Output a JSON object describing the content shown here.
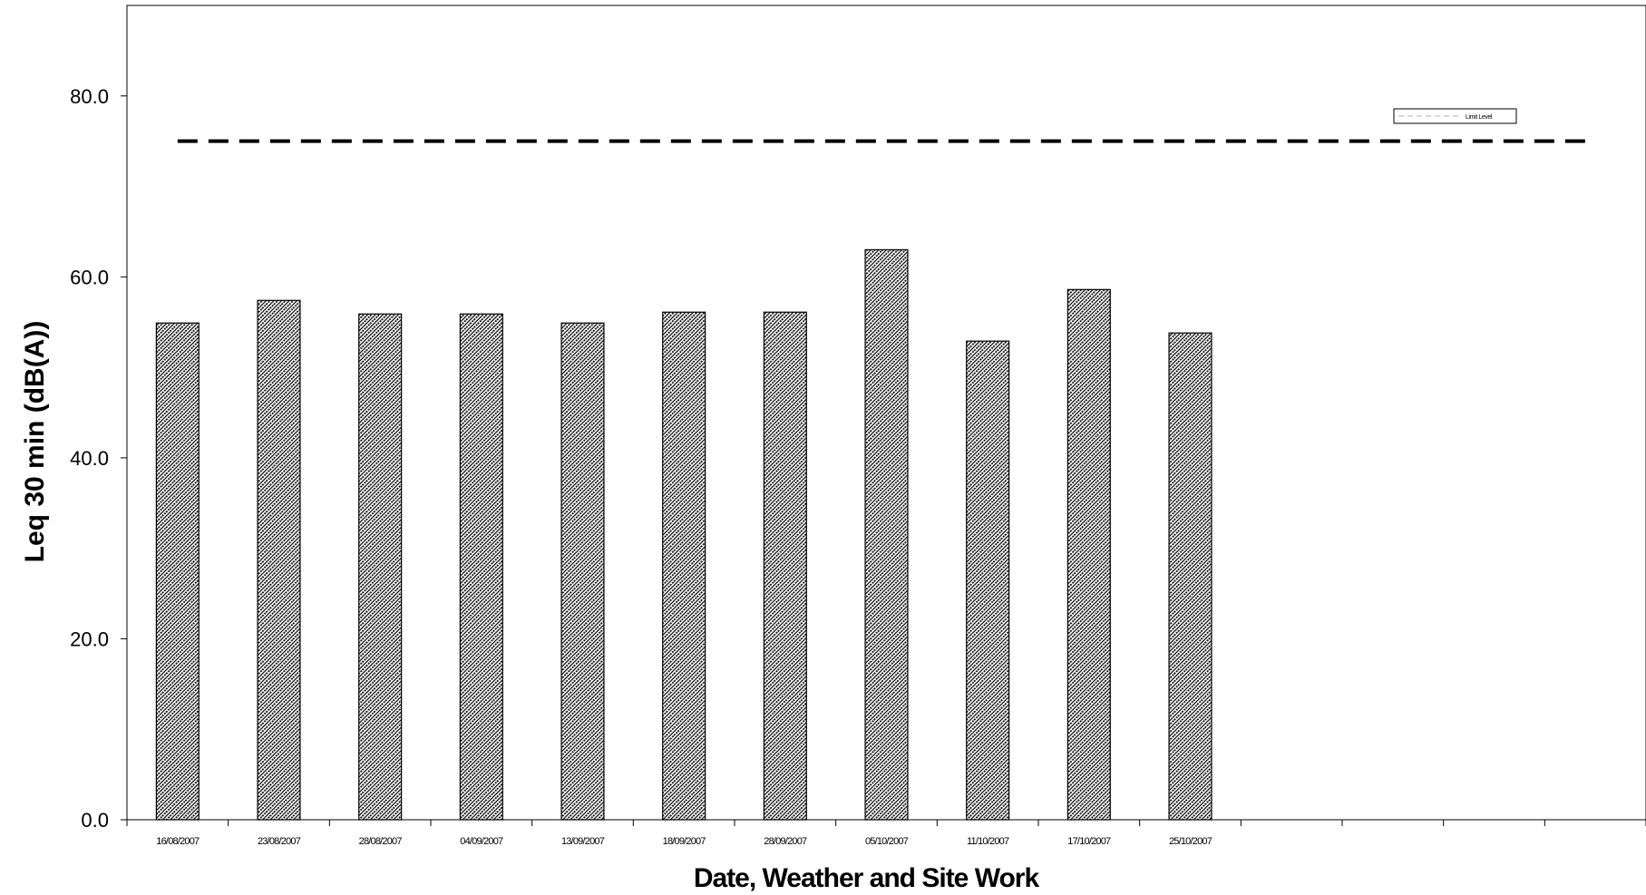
{
  "chart_data": {
    "type": "bar",
    "title": "",
    "xlabel": "Date, Weather and Site Work",
    "ylabel": "Leq 30 min (dB(A))",
    "ylim": [
      0,
      90
    ],
    "yticks": [
      "0.0",
      "20.0",
      "40.0",
      "60.0",
      "80.0"
    ],
    "categories": [
      "16/08/2007",
      "23/08/2007",
      "28/08/2007",
      "04/09/2007",
      "13/09/2007",
      "18/09/2007",
      "28/09/2007",
      "05/10/2007",
      "11/10/2007",
      "17/10/2007",
      "25/10/2007"
    ],
    "empty_category_slots": 4,
    "values": [
      54.9,
      57.4,
      55.9,
      55.9,
      54.9,
      56.1,
      56.1,
      63.0,
      52.9,
      58.6,
      53.8
    ],
    "limit_level": {
      "name": "Limit Level",
      "value": 75
    },
    "legend": {
      "placement": "top-right",
      "entries": [
        "Limit Level"
      ]
    },
    "grid": false,
    "colors": {
      "bar_pattern": "#000000",
      "bar_fill": "#ffffff",
      "limit_line": "#000000"
    }
  }
}
